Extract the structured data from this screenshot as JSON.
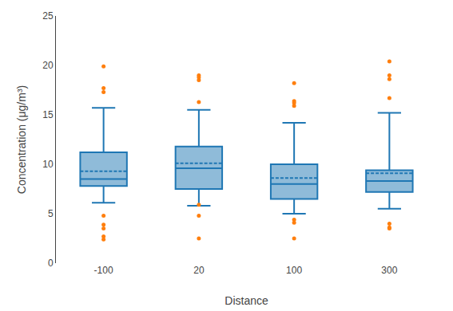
{
  "chart_data": {
    "type": "box",
    "categories": [
      "-100",
      "20",
      "100",
      "300"
    ],
    "boxes": [
      {
        "q1": 7.8,
        "median": 8.5,
        "q3": 11.2,
        "mean": 9.3,
        "whisker_low": 6.1,
        "whisker_high": 15.7,
        "fliers_low": [
          4.8,
          3.9,
          3.5,
          2.7,
          2.4
        ],
        "fliers_high": [
          19.9,
          17.7,
          17.3
        ]
      },
      {
        "q1": 7.5,
        "median": 9.6,
        "q3": 11.8,
        "mean": 10.1,
        "whisker_low": 5.8,
        "whisker_high": 15.5,
        "fliers_low": [
          2.5,
          4.8,
          5.9
        ],
        "fliers_high": [
          16.3,
          18.5,
          18.8,
          19.0
        ]
      },
      {
        "q1": 6.5,
        "median": 8.0,
        "q3": 10.0,
        "mean": 8.6,
        "whisker_low": 5.0,
        "whisker_high": 14.2,
        "fliers_low": [
          4.4,
          4.1,
          2.5
        ],
        "fliers_high": [
          16.4,
          16.2,
          15.9,
          18.2
        ]
      },
      {
        "q1": 7.2,
        "median": 8.3,
        "q3": 9.4,
        "mean": 9.1,
        "whisker_low": 5.5,
        "whisker_high": 15.2,
        "fliers_low": [
          4.0,
          3.6,
          3.5
        ],
        "fliers_high": [
          16.7,
          18.6,
          19.0,
          20.4
        ]
      }
    ],
    "xlabel": "Distance",
    "ylabel": "Concentration (μg/m³)",
    "ylim": [
      0,
      25
    ],
    "yticks": [
      0,
      5,
      10,
      15,
      20,
      25
    ],
    "grid": false
  }
}
